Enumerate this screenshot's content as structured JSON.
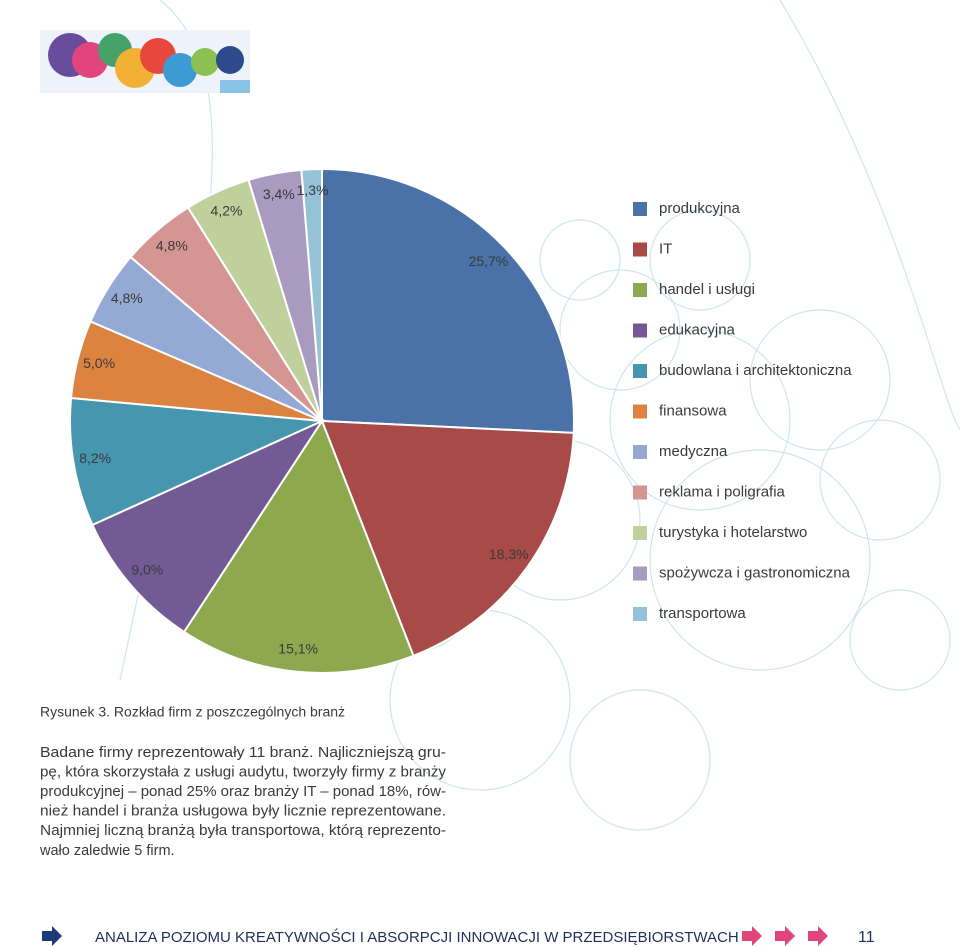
{
  "chart_data": {
    "type": "pie",
    "categories": [
      "produkcyjna",
      "IT",
      "handel i usługi",
      "edukacyjna",
      "budowlana i architektoniczna",
      "finansowa",
      "medyczna",
      "reklama i poligrafia",
      "turystyka i hotelarstwo",
      "spożywcza i gastronomiczna",
      "transportowa"
    ],
    "values": [
      25.7,
      18.3,
      15.1,
      9.0,
      8.2,
      5.0,
      4.8,
      4.8,
      4.2,
      3.4,
      1.3
    ],
    "value_labels": [
      "25,7%",
      "18,3%",
      "15,1%",
      "9,0%",
      "8,2%",
      "5,0%",
      "4,8%",
      "4,8%",
      "4,2%",
      "3,4%",
      "1,3%"
    ],
    "colors": [
      "#4a72a8",
      "#a84a47",
      "#8ea84e",
      "#725a94",
      "#4596ae",
      "#dc8340",
      "#94a9d3",
      "#d59693",
      "#bfd09c",
      "#a99bc0",
      "#95c2d6"
    ],
    "legend": "right"
  },
  "caption": "Rysunek 3. Rozkład firm z poszczególnych branż",
  "body": [
    "Badane firmy reprezentowały 11 branż. Najliczniejszą gru-",
    "pę, która skorzystała z usługi audytu, tworzyły firmy z branży",
    "produkcyjnej – ponad 25% oraz branży IT – ponad 18%, rów-",
    "nież handel i branża usługowa były licznie reprezentowane.",
    "Najmniej liczną branżą była transportowa, którą reprezento-",
    "wało zaledwie 5 firm."
  ],
  "footer": {
    "title": "ANALIZA POZIOMU KREATYWNOŚCI I ABSORPCJI INNOWACJI W PRZEDSIĘBIORSTWACH",
    "page": "11"
  }
}
